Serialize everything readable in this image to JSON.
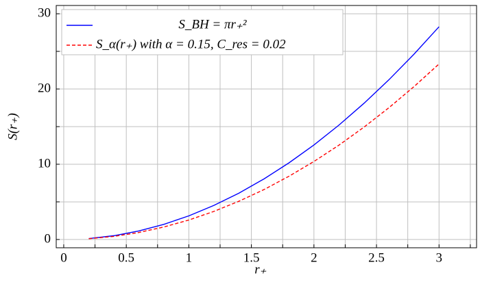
{
  "chart_data": {
    "type": "line",
    "xlabel": "r₊",
    "ylabel": "S(r₊)",
    "x": [
      0.2,
      0.4,
      0.6,
      0.8,
      1.0,
      1.2,
      1.4,
      1.6,
      1.8,
      2.0,
      2.2,
      2.4,
      2.6,
      2.8,
      3.0
    ],
    "series": [
      {
        "name": "S_BH = πr₊²",
        "color": "#0000ff",
        "dash": "solid",
        "values": [
          0.126,
          0.503,
          1.131,
          2.011,
          3.142,
          4.524,
          6.158,
          8.042,
          10.179,
          12.566,
          15.205,
          18.096,
          21.237,
          24.63,
          28.274
        ]
      },
      {
        "name": "S_α(r₊) with α = 0.15, C_res = 0.02",
        "color": "#ff0000",
        "dash": "dashed",
        "values": [
          0.1,
          0.41,
          0.93,
          1.66,
          2.59,
          3.73,
          5.08,
          6.63,
          8.4,
          10.37,
          12.54,
          14.93,
          17.52,
          20.32,
          23.33
        ]
      }
    ],
    "xlim": [
      -0.06,
      3.3
    ],
    "ylim": [
      -1.1,
      31.1
    ],
    "xticks": [
      0,
      0.5,
      1,
      1.5,
      2,
      2.5,
      3
    ],
    "yticks": [
      0,
      10,
      20,
      30
    ],
    "xminorticks": [
      0.25,
      0.75,
      1.25,
      1.75,
      2.25,
      2.75,
      3.25
    ],
    "yminorticks": [
      5,
      15,
      25
    ],
    "grid": true,
    "legend": "upper left"
  }
}
